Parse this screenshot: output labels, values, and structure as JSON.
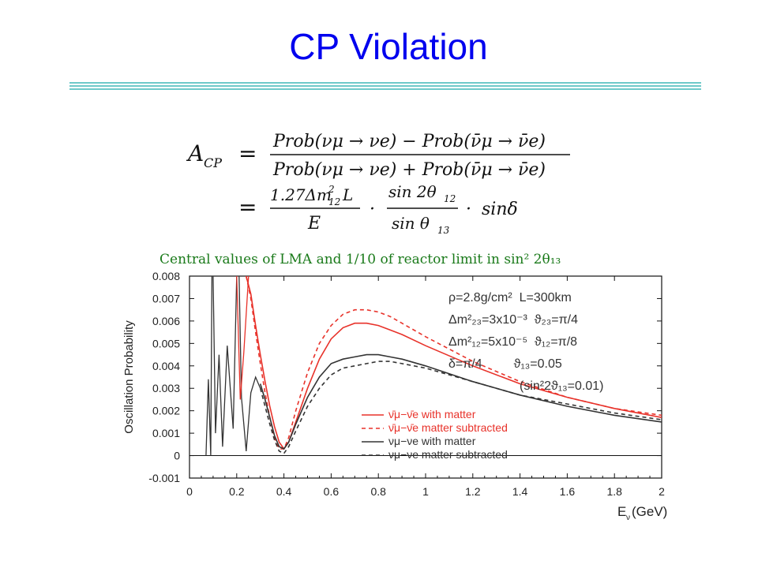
{
  "slide": {
    "title": "CP Violation",
    "accent_color": "#0000ee",
    "rule_color": "#6ec9c9"
  },
  "formula": {
    "lhs": "A",
    "lhs_sub": "CP",
    "eq": "=",
    "line1_num": "Prob(ν",
    "line1_num_full": "Prob(νμ → νe) − Prob(ν̄μ → ν̄e)",
    "line1_den_full": "Prob(νμ → νe) + Prob(ν̄μ → ν̄e)",
    "line2_num1": "1.27Δm",
    "line2_num1_sup": "2",
    "line2_num1_sub": "12",
    "line2_num1_tail": "L",
    "line2_den1": "E",
    "dot": "·",
    "line2_num2": "sin 2θ",
    "line2_num2_sub": "12",
    "line2_den2": "sin θ",
    "line2_den2_sub": "13",
    "line2_tail": "sinδ"
  },
  "chart_data": {
    "type": "line",
    "title": "Central values of LMA and 1/10 of reactor limit in sin² 2θ₁₃",
    "title_color": "#1a7a1a",
    "xlabel": "E",
    "xlabel_sub": "ν",
    "xlabel_unit": "(GeV)",
    "ylabel": "Oscillation Probability",
    "xlim": [
      0,
      2
    ],
    "ylim": [
      -0.001,
      0.008
    ],
    "x_ticks": [
      "0",
      "0.2",
      "0.4",
      "0.6",
      "0.8",
      "1",
      "1.2",
      "1.4",
      "1.6",
      "1.8",
      "2"
    ],
    "y_ticks": [
      "-0.001",
      "0",
      "0.001",
      "0.002",
      "0.003",
      "0.004",
      "0.005",
      "0.006",
      "0.007",
      "0.008"
    ],
    "params": [
      "ρ=2.8g/cm²  L=300km",
      "Δm²₂₃=3x10⁻³  ϑ₂₃=π/4",
      "Δm²₁₂=5x10⁻⁵  ϑ₁₂=π/8",
      "δ=π/4         ϑ₁₃=0.05",
      "(sin²2ϑ₁₃=0.01)"
    ],
    "legend": [
      {
        "label": "ν̄μ−ν̄e with matter",
        "color": "#e8322a",
        "dash": "solid"
      },
      {
        "label": "ν̄μ−ν̄e matter subtracted",
        "color": "#e8322a",
        "dash": "dashed"
      },
      {
        "label": "νμ−νe with matter",
        "color": "#333333",
        "dash": "solid"
      },
      {
        "label": "νμ−νe matter subtracted",
        "color": "#333333",
        "dash": "dashed"
      }
    ],
    "series": [
      {
        "color": "#e8322a",
        "dash": "solid",
        "x": [
          0.24,
          0.26,
          0.28,
          0.3,
          0.32,
          0.34,
          0.36,
          0.38,
          0.4,
          0.42,
          0.45,
          0.5,
          0.55,
          0.6,
          0.65,
          0.7,
          0.75,
          0.8,
          0.85,
          0.9,
          1.0,
          1.2,
          1.4,
          1.6,
          1.8,
          2.0
        ],
        "y": [
          0.008,
          0.0072,
          0.0058,
          0.0045,
          0.0033,
          0.0022,
          0.0013,
          0.0006,
          0.0003,
          0.0006,
          0.0015,
          0.003,
          0.0043,
          0.0052,
          0.0057,
          0.0059,
          0.0059,
          0.0058,
          0.0056,
          0.0054,
          0.0049,
          0.004,
          0.0032,
          0.0026,
          0.0021,
          0.0017
        ]
      },
      {
        "color": "#e8322a",
        "dash": "dashed",
        "x": [
          0.24,
          0.26,
          0.28,
          0.3,
          0.32,
          0.34,
          0.36,
          0.38,
          0.4,
          0.42,
          0.45,
          0.5,
          0.55,
          0.6,
          0.65,
          0.7,
          0.75,
          0.8,
          0.85,
          0.9,
          1.0,
          1.2,
          1.4,
          1.6,
          1.8,
          2.0
        ],
        "y": [
          0.008,
          0.007,
          0.0055,
          0.0041,
          0.0028,
          0.0017,
          0.0008,
          0.0003,
          0.0003,
          0.0008,
          0.002,
          0.0037,
          0.005,
          0.0058,
          0.0063,
          0.0065,
          0.0065,
          0.0064,
          0.0062,
          0.0059,
          0.0053,
          0.0042,
          0.0033,
          0.0026,
          0.0021,
          0.0018
        ]
      },
      {
        "color": "#333333",
        "dash": "solid",
        "x": [
          0.3,
          0.32,
          0.34,
          0.36,
          0.38,
          0.4,
          0.42,
          0.45,
          0.5,
          0.55,
          0.6,
          0.65,
          0.7,
          0.75,
          0.8,
          0.85,
          0.9,
          1.0,
          1.2,
          1.4,
          1.6,
          1.8,
          2.0
        ],
        "y": [
          0.0032,
          0.0025,
          0.0017,
          0.0009,
          0.0004,
          0.0003,
          0.0006,
          0.0014,
          0.0026,
          0.0035,
          0.0041,
          0.0043,
          0.0044,
          0.0045,
          0.0045,
          0.0044,
          0.0043,
          0.004,
          0.0033,
          0.0027,
          0.0022,
          0.0018,
          0.0015
        ]
      },
      {
        "color": "#333333",
        "dash": "dashed",
        "x": [
          0.3,
          0.32,
          0.34,
          0.36,
          0.38,
          0.4,
          0.42,
          0.45,
          0.5,
          0.55,
          0.6,
          0.65,
          0.7,
          0.75,
          0.8,
          0.85,
          0.9,
          1.0,
          1.2,
          1.4,
          1.6,
          1.8,
          2.0
        ],
        "y": [
          0.003,
          0.0022,
          0.0014,
          0.0007,
          0.0002,
          0.0001,
          0.0004,
          0.0011,
          0.0022,
          0.003,
          0.0036,
          0.0039,
          0.004,
          0.0041,
          0.0042,
          0.0042,
          0.0041,
          0.0039,
          0.0033,
          0.0027,
          0.0023,
          0.0019,
          0.0016
        ]
      }
    ]
  }
}
